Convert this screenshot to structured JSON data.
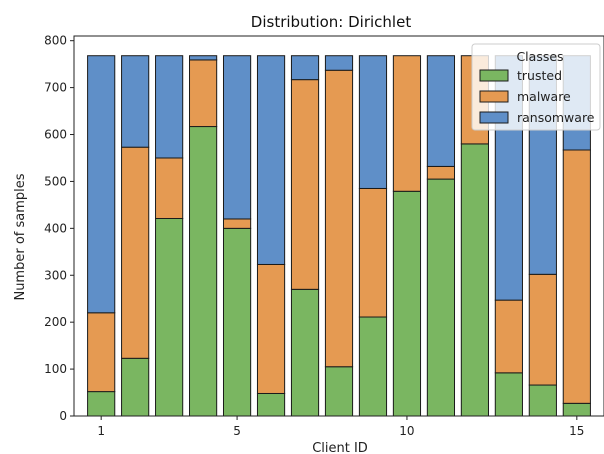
{
  "chart_data": {
    "type": "bar",
    "stacked": true,
    "title": "Distribution: Dirichlet",
    "xlabel": "Client ID",
    "ylabel": "Number of samples",
    "categories": [
      1,
      2,
      3,
      4,
      5,
      6,
      7,
      8,
      9,
      10,
      11,
      12,
      13,
      14,
      15
    ],
    "x_ticks": [
      1,
      5,
      10,
      15
    ],
    "ylim": [
      0,
      810
    ],
    "y_ticks": [
      0,
      100,
      200,
      300,
      400,
      500,
      600,
      700,
      800
    ],
    "legend": {
      "title": "Classes",
      "position": "top-right"
    },
    "series": [
      {
        "name": "trusted",
        "color": "#7ab661",
        "values": [
          52,
          123,
          421,
          617,
          400,
          48,
          270,
          105,
          211,
          479,
          505,
          580,
          92,
          66,
          27
        ]
      },
      {
        "name": "malware",
        "color": "#e59a52",
        "values": [
          168,
          450,
          129,
          142,
          20,
          275,
          447,
          632,
          274,
          289,
          27,
          188,
          155,
          236,
          540
        ]
      },
      {
        "name": "ransomware",
        "color": "#5f8fc8",
        "values": [
          548,
          195,
          218,
          9,
          348,
          445,
          51,
          31,
          283,
          0,
          236,
          0,
          521,
          466,
          201
        ]
      }
    ]
  }
}
